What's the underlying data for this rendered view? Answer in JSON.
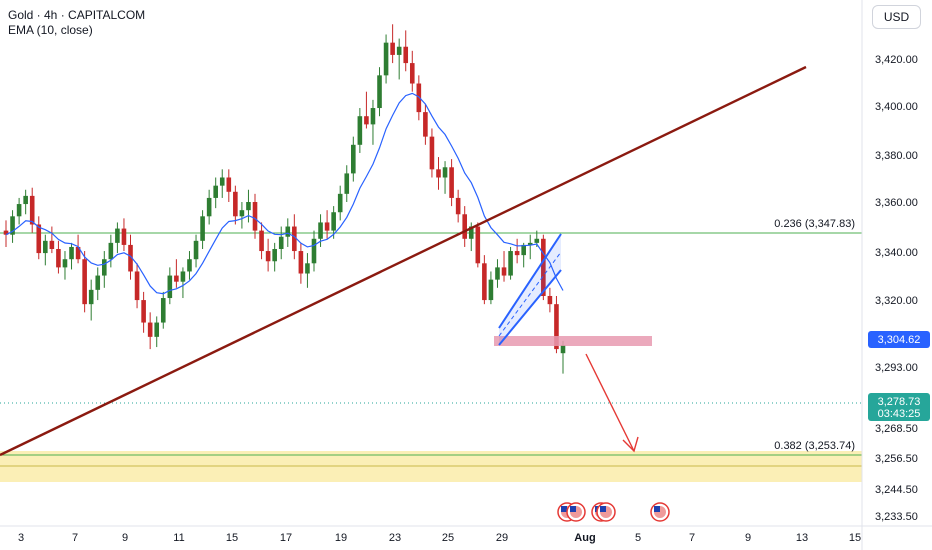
{
  "header": {
    "title": "Gold · 4h · CAPITALCOM",
    "indicator": "EMA (10, close)"
  },
  "currency_button": "USD",
  "colors": {
    "up": "#2e7d32",
    "down": "#c62828",
    "ema": "#2962ff",
    "trendline": "#8b1a10",
    "fib": "#4caf50",
    "zone": "#f7e27a",
    "resistance_box": "#e79ab0",
    "channel": "#2962ff",
    "arrow": "#e53935",
    "price_label": "#2962ff",
    "last_price_label": "#26a69a"
  },
  "chart_data": {
    "type": "candlestick",
    "symbol": "Gold",
    "timeframe": "4h",
    "source": "CAPITALCOM",
    "ylim": [
      3228,
      3448
    ],
    "x_ticks": [
      "3",
      "7",
      "9",
      "11",
      "15",
      "17",
      "19",
      "23",
      "25",
      "29",
      "Aug",
      "5",
      "7",
      "9",
      "13",
      "15"
    ],
    "y_ticks": [
      "3,420.00",
      "3,400.00",
      "3,380.00",
      "3,360.00",
      "3,340.00",
      "3,320.00",
      "3,293.00",
      "3,268.50",
      "3,256.50",
      "3,244.50",
      "3,233.50"
    ],
    "fib_levels": [
      {
        "label": "0.236 (3,347.83)",
        "value": 3347.83
      },
      {
        "label": "0.382 (3,253.74)",
        "value": 3253.74
      }
    ],
    "price_labels": [
      {
        "value": "3,304.62",
        "price": 3304.62,
        "role": "level"
      },
      {
        "value": "3,278.73",
        "price": 3278.73,
        "role": "last"
      },
      {
        "value": "03:43:25",
        "role": "countdown"
      }
    ],
    "ema_label": "EMA 10",
    "event_markers": 4,
    "candles": [
      [
        3336,
        3341,
        3328,
        3334
      ],
      [
        3334,
        3346,
        3330,
        3343
      ],
      [
        3343,
        3352,
        3339,
        3349
      ],
      [
        3349,
        3356,
        3344,
        3353
      ],
      [
        3353,
        3357,
        3335,
        3339
      ],
      [
        3339,
        3343,
        3322,
        3325
      ],
      [
        3325,
        3334,
        3319,
        3331
      ],
      [
        3331,
        3338,
        3325,
        3327
      ],
      [
        3327,
        3331,
        3315,
        3318
      ],
      [
        3318,
        3326,
        3312,
        3322
      ],
      [
        3322,
        3330,
        3317,
        3328
      ],
      [
        3328,
        3334,
        3320,
        3322
      ],
      [
        3322,
        3326,
        3296,
        3300
      ],
      [
        3300,
        3312,
        3292,
        3307
      ],
      [
        3307,
        3318,
        3302,
        3314
      ],
      [
        3314,
        3326,
        3308,
        3322
      ],
      [
        3322,
        3334,
        3318,
        3330
      ],
      [
        3330,
        3340,
        3325,
        3337
      ],
      [
        3337,
        3342,
        3326,
        3329
      ],
      [
        3329,
        3334,
        3312,
        3316
      ],
      [
        3316,
        3320,
        3298,
        3302
      ],
      [
        3302,
        3306,
        3286,
        3291
      ],
      [
        3291,
        3296,
        3278,
        3284
      ],
      [
        3284,
        3294,
        3279,
        3291
      ],
      [
        3291,
        3306,
        3288,
        3303
      ],
      [
        3303,
        3318,
        3300,
        3314
      ],
      [
        3314,
        3322,
        3308,
        3311
      ],
      [
        3311,
        3318,
        3303,
        3316
      ],
      [
        3316,
        3326,
        3312,
        3322
      ],
      [
        3322,
        3334,
        3318,
        3331
      ],
      [
        3331,
        3346,
        3327,
        3343
      ],
      [
        3343,
        3356,
        3339,
        3352
      ],
      [
        3352,
        3362,
        3347,
        3358
      ],
      [
        3358,
        3366,
        3352,
        3362
      ],
      [
        3362,
        3366,
        3350,
        3355
      ],
      [
        3355,
        3358,
        3339,
        3343
      ],
      [
        3343,
        3350,
        3337,
        3346
      ],
      [
        3346,
        3356,
        3340,
        3350
      ],
      [
        3350,
        3354,
        3332,
        3336
      ],
      [
        3336,
        3340,
        3322,
        3326
      ],
      [
        3326,
        3332,
        3316,
        3321
      ],
      [
        3321,
        3330,
        3316,
        3327
      ],
      [
        3327,
        3338,
        3322,
        3333
      ],
      [
        3333,
        3342,
        3328,
        3338
      ],
      [
        3338,
        3344,
        3322,
        3326
      ],
      [
        3326,
        3330,
        3310,
        3315
      ],
      [
        3315,
        3325,
        3308,
        3320
      ],
      [
        3320,
        3336,
        3316,
        3332
      ],
      [
        3332,
        3344,
        3328,
        3340
      ],
      [
        3340,
        3346,
        3332,
        3336
      ],
      [
        3336,
        3348,
        3332,
        3345
      ],
      [
        3345,
        3358,
        3341,
        3354
      ],
      [
        3354,
        3368,
        3350,
        3364
      ],
      [
        3364,
        3382,
        3360,
        3378
      ],
      [
        3378,
        3396,
        3374,
        3392
      ],
      [
        3392,
        3404,
        3386,
        3388
      ],
      [
        3388,
        3400,
        3378,
        3396
      ],
      [
        3396,
        3416,
        3392,
        3412
      ],
      [
        3412,
        3432,
        3408,
        3428
      ],
      [
        3428,
        3437,
        3418,
        3422
      ],
      [
        3422,
        3430,
        3410,
        3426
      ],
      [
        3426,
        3434,
        3414,
        3418
      ],
      [
        3418,
        3424,
        3404,
        3408
      ],
      [
        3408,
        3412,
        3390,
        3394
      ],
      [
        3394,
        3398,
        3378,
        3382
      ],
      [
        3382,
        3386,
        3362,
        3366
      ],
      [
        3366,
        3372,
        3356,
        3362
      ],
      [
        3362,
        3370,
        3354,
        3367
      ],
      [
        3367,
        3371,
        3348,
        3352
      ],
      [
        3352,
        3356,
        3340,
        3344
      ],
      [
        3344,
        3348,
        3328,
        3332
      ],
      [
        3332,
        3340,
        3326,
        3338
      ],
      [
        3338,
        3340,
        3318,
        3320
      ],
      [
        3320,
        3324,
        3300,
        3302
      ],
      [
        3302,
        3316,
        3300,
        3312
      ],
      [
        3312,
        3322,
        3308,
        3318
      ],
      [
        3318,
        3326,
        3311,
        3314
      ],
      [
        3314,
        3328,
        3312,
        3326
      ],
      [
        3326,
        3332,
        3320,
        3324
      ],
      [
        3324,
        3330,
        3318,
        3329
      ],
      [
        3329,
        3334,
        3322,
        3330
      ],
      [
        3330,
        3336,
        3328,
        3332
      ],
      [
        3332,
        3334,
        3302,
        3304
      ],
      [
        3304,
        3308,
        3296,
        3300
      ],
      [
        3300,
        3304,
        3276,
        3278
      ],
      [
        3276,
        3282,
        3266,
        3280
      ]
    ]
  }
}
